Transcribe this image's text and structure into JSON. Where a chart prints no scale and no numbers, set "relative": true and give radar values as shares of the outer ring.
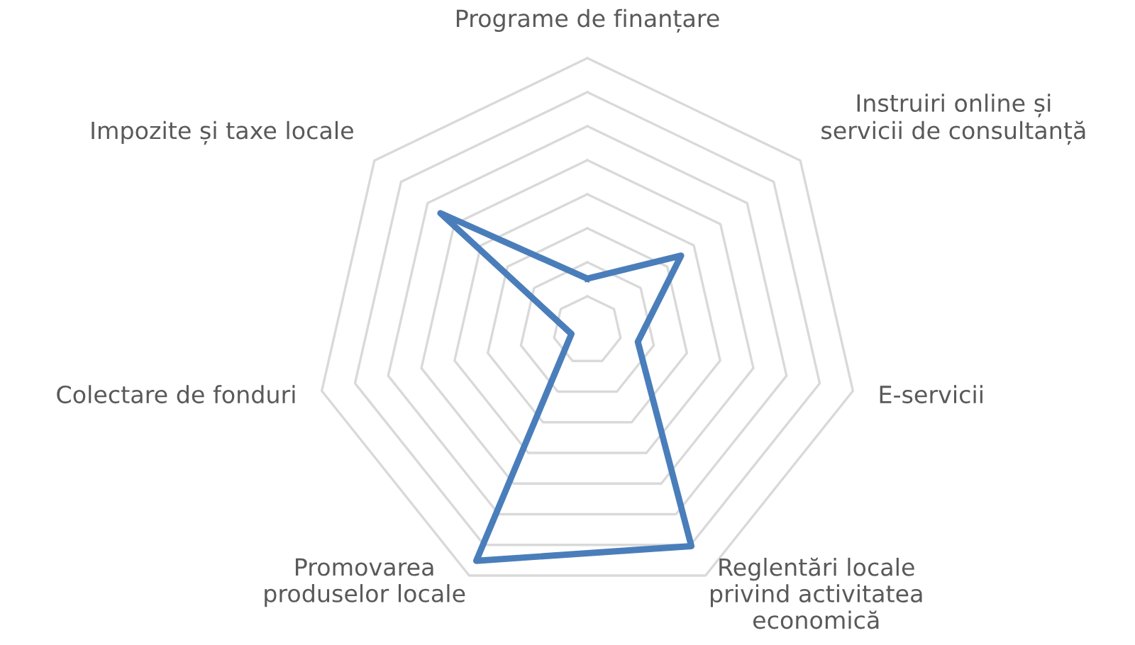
{
  "chart_data": {
    "type": "radar",
    "relative": true,
    "grid": true,
    "legend": false,
    "marker": "none",
    "line_style": "solid",
    "categories": [
      "Programe de finanțare",
      "Instruiri online și\nservicii de consultanță",
      "E-servicii",
      "Reglentări locale\nprivind activitatea\neconomică",
      "Promovarea\nproduselor locale",
      "Colectare de fonduri",
      "Impozite și taxe locale"
    ],
    "series": [
      {
        "color": "#4a7ebb",
        "values": [
          0.19,
          0.44,
          0.19,
          0.88,
          0.94,
          0.06,
          0.69
        ]
      }
    ]
  }
}
